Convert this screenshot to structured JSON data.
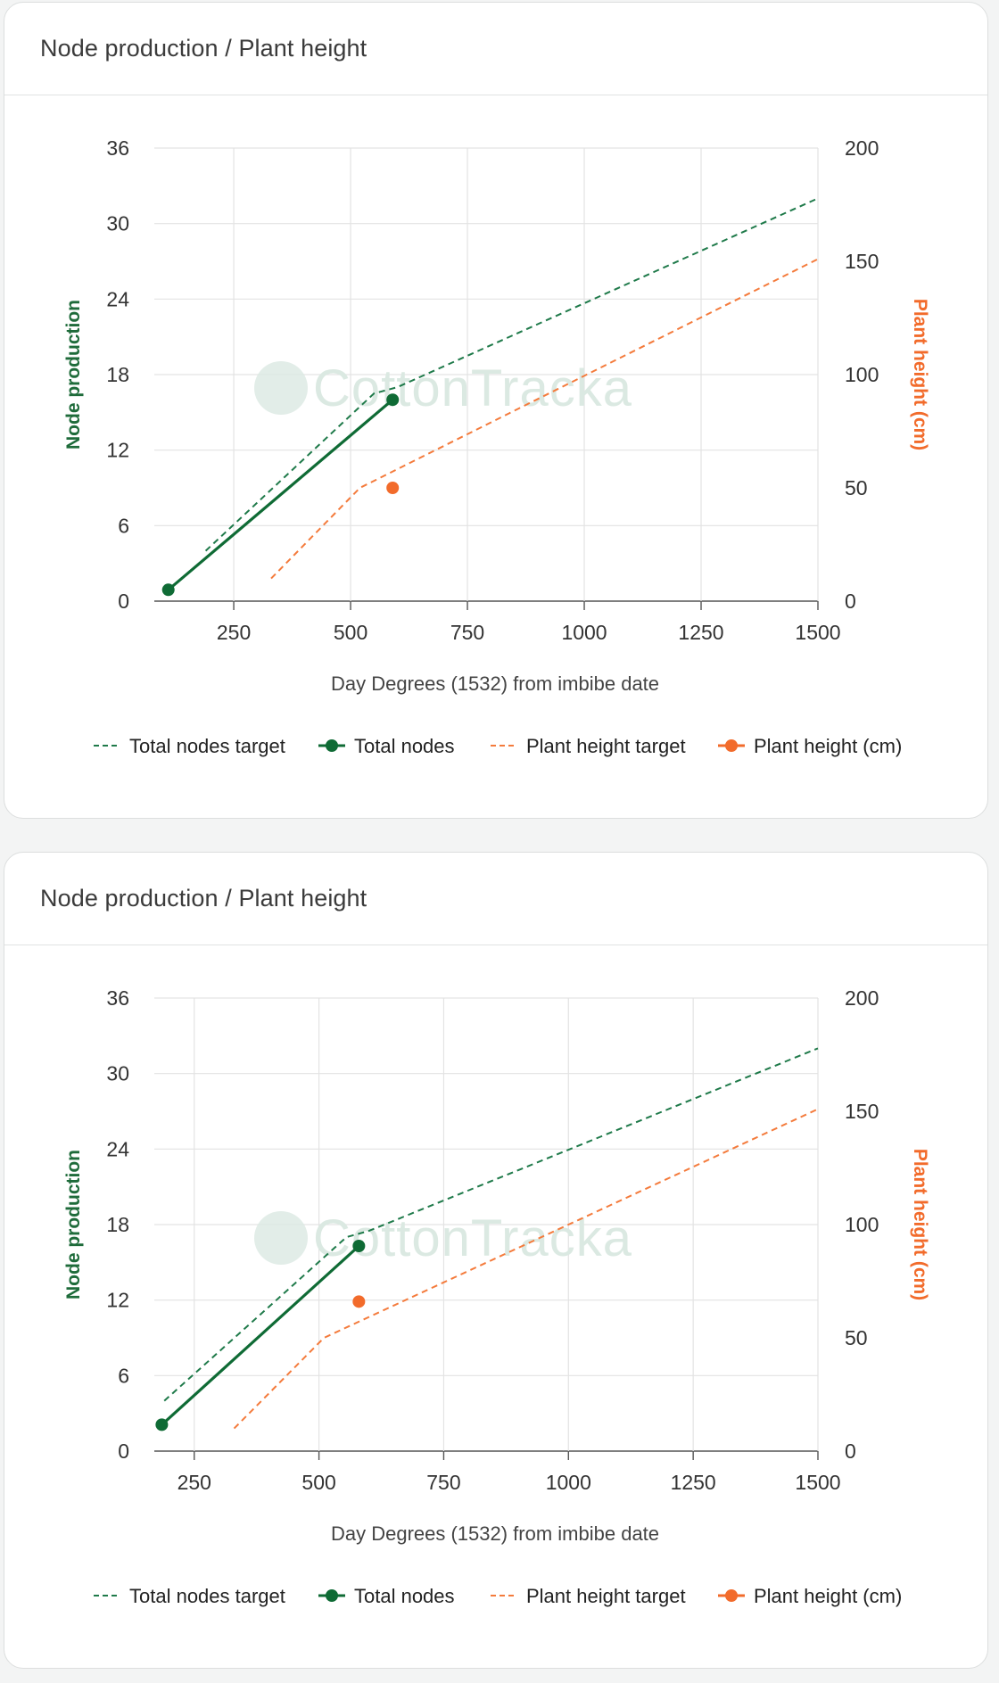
{
  "charts": [
    {
      "title": "Node production / Plant height",
      "watermark": "CottonTracka",
      "chart_data": {
        "type": "line",
        "xlabel": "Day Degrees (1532) from imbibe date",
        "ylabel_left": "Node production",
        "ylabel_right": "Plant height (cm)",
        "xlim": [
          80,
          1500
        ],
        "ylim_left": [
          0,
          36
        ],
        "ylim_right": [
          0,
          200
        ],
        "x_ticks": [
          "250",
          "500",
          "750",
          "1000",
          "1250",
          "1500"
        ],
        "y_left_ticks": [
          "0",
          "6",
          "12",
          "18",
          "24",
          "30",
          "36"
        ],
        "y_right_ticks": [
          "0",
          "50",
          "100",
          "150",
          "200"
        ],
        "grid": true,
        "legend_position": "bottom",
        "series": [
          {
            "name": "Total nodes target",
            "axis": "left",
            "style": "dashed",
            "color": "#1f7a4a",
            "x": [
              190,
              550,
              600,
              1500
            ],
            "y": [
              4,
              16.5,
              17,
              32
            ]
          },
          {
            "name": "Total nodes",
            "axis": "left",
            "style": "solid-markers",
            "color": "#0f6b35",
            "x": [
              110,
              590
            ],
            "y": [
              0.9,
              16
            ]
          },
          {
            "name": "Plant height target",
            "axis": "right",
            "style": "dashed",
            "color": "#f47b3c",
            "x": [
              330,
              520,
              1500
            ],
            "y": [
              10,
              50,
              151
            ]
          },
          {
            "name": "Plant height (cm)",
            "axis": "right",
            "style": "markers",
            "color": "#f26b2b",
            "x": [
              590
            ],
            "y": [
              50
            ]
          }
        ]
      }
    },
    {
      "title": "Node production / Plant height",
      "watermark": "CottonTracka",
      "chart_data": {
        "type": "line",
        "xlabel": "Day Degrees (1532) from imbibe date",
        "ylabel_left": "Node production",
        "ylabel_right": "Plant height (cm)",
        "xlim": [
          170,
          1500
        ],
        "ylim_left": [
          0,
          36
        ],
        "ylim_right": [
          0,
          200
        ],
        "x_ticks": [
          "250",
          "500",
          "750",
          "1000",
          "1250",
          "1500"
        ],
        "y_left_ticks": [
          "0",
          "6",
          "12",
          "18",
          "24",
          "30",
          "36"
        ],
        "y_right_ticks": [
          "0",
          "50",
          "100",
          "150",
          "200"
        ],
        "grid": true,
        "legend_position": "bottom",
        "series": [
          {
            "name": "Total nodes target",
            "axis": "left",
            "style": "dashed",
            "color": "#1f7a4a",
            "x": [
              190,
              555,
              600,
              1500
            ],
            "y": [
              4,
              17,
              17.5,
              32
            ]
          },
          {
            "name": "Total nodes",
            "axis": "left",
            "style": "solid-markers",
            "color": "#0f6b35",
            "x": [
              185,
              580
            ],
            "y": [
              2.1,
              16.3
            ]
          },
          {
            "name": "Plant height target",
            "axis": "right",
            "style": "dashed",
            "color": "#f47b3c",
            "x": [
              330,
              510,
              1500
            ],
            "y": [
              10,
              50,
              151
            ]
          },
          {
            "name": "Plant height (cm)",
            "axis": "right",
            "style": "markers",
            "color": "#f26b2b",
            "x": [
              580
            ],
            "y": [
              66
            ]
          }
        ]
      }
    }
  ]
}
